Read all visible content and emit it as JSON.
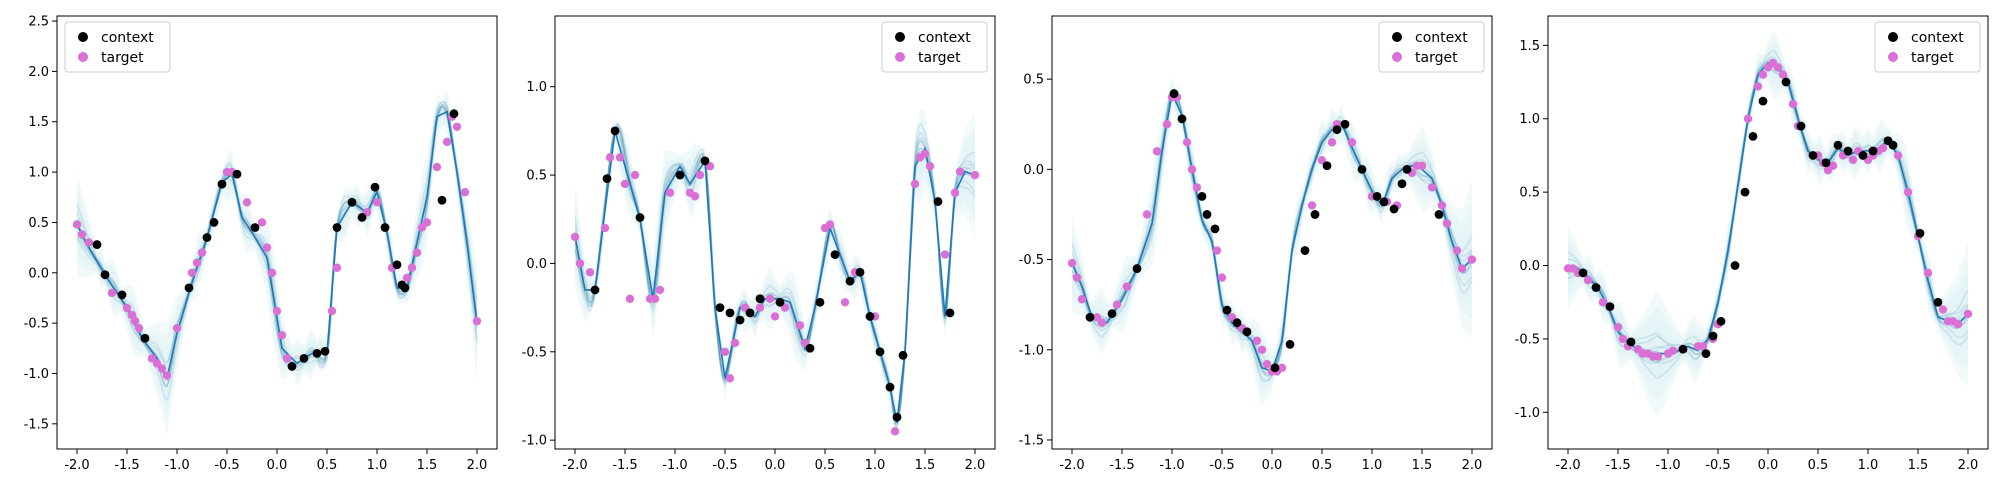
{
  "chart_data": [
    {
      "type": "scatter",
      "xlim": [
        -2.2,
        2.2
      ],
      "ylim": [
        -1.75,
        2.55
      ],
      "xticks": [
        "-2.0",
        "-1.5",
        "-1.0",
        "-0.5",
        "0.0",
        "0.5",
        "1.0",
        "1.5",
        "2.0"
      ],
      "yticks": [
        "-1.5",
        "-1.0",
        "-0.5",
        "0.0",
        "0.5",
        "1.0",
        "1.5",
        "2.0",
        "2.5"
      ],
      "legend_position": "top-left",
      "series": [
        {
          "name": "context",
          "color": "#000000"
        },
        {
          "name": "target",
          "color": "#da70d6"
        }
      ],
      "band_color": "#e0f2f5",
      "curve_color": "#1f77b4",
      "truth": {
        "x": [
          -2.0,
          -1.9,
          -1.7,
          -1.5,
          -1.35,
          -1.2,
          -1.1,
          -1.0,
          -0.85,
          -0.7,
          -0.55,
          -0.45,
          -0.35,
          -0.25,
          -0.1,
          0.05,
          0.2,
          0.35,
          0.5,
          0.6,
          0.75,
          0.9,
          1.0,
          1.1,
          1.2,
          1.3,
          1.4,
          1.5,
          1.6,
          1.7,
          1.8,
          1.9,
          2.0
        ],
        "y": [
          0.48,
          0.28,
          -0.05,
          -0.35,
          -0.65,
          -0.85,
          -1.05,
          -0.6,
          -0.1,
          0.35,
          0.9,
          0.98,
          0.55,
          0.4,
          0.15,
          -0.75,
          -0.9,
          -0.8,
          -0.8,
          0.45,
          0.7,
          0.6,
          0.8,
          0.4,
          -0.15,
          -0.15,
          0.3,
          0.75,
          1.55,
          1.6,
          1.0,
          0.3,
          -0.5
        ]
      },
      "context": {
        "x": [
          -1.8,
          -1.72,
          -1.55,
          -1.32,
          -0.88,
          -0.7,
          -0.63,
          -0.55,
          -0.4,
          -0.22,
          0.15,
          0.27,
          0.4,
          0.48,
          0.6,
          0.75,
          0.85,
          0.98,
          1.08,
          1.2,
          1.25,
          1.28,
          1.65,
          1.77
        ],
        "y": [
          0.28,
          -0.02,
          -0.22,
          -0.65,
          -0.15,
          0.35,
          0.5,
          0.88,
          0.98,
          0.45,
          -0.93,
          -0.85,
          -0.8,
          -0.78,
          0.45,
          0.7,
          0.55,
          0.85,
          0.45,
          0.08,
          -0.12,
          -0.15,
          0.72,
          1.58
        ]
      },
      "target": {
        "x": [
          -2.0,
          -1.95,
          -1.88,
          -1.65,
          -1.5,
          -1.45,
          -1.42,
          -1.38,
          -1.25,
          -1.2,
          -1.15,
          -1.1,
          -1.0,
          -0.85,
          -0.8,
          -0.75,
          -0.5,
          -0.45,
          -0.3,
          -0.15,
          -0.1,
          -0.05,
          0.0,
          0.05,
          0.1,
          0.55,
          0.6,
          0.9,
          1.0,
          1.15,
          1.3,
          1.35,
          1.4,
          1.45,
          1.5,
          1.6,
          1.7,
          1.75,
          1.8,
          1.88,
          2.0
        ],
        "y": [
          0.48,
          0.38,
          0.3,
          -0.2,
          -0.35,
          -0.42,
          -0.48,
          -0.55,
          -0.85,
          -0.9,
          -0.95,
          -1.02,
          -0.55,
          0.0,
          0.1,
          0.2,
          1.0,
          1.0,
          0.7,
          0.5,
          0.25,
          0.0,
          -0.38,
          -0.62,
          -0.85,
          -0.38,
          0.05,
          0.6,
          0.7,
          0.05,
          -0.05,
          0.05,
          0.2,
          0.45,
          0.5,
          1.05,
          1.3,
          1.55,
          1.45,
          0.8,
          -0.48
        ]
      }
    },
    {
      "type": "scatter",
      "xlim": [
        -2.2,
        2.2
      ],
      "ylim": [
        -1.05,
        1.4
      ],
      "xticks": [
        "-2.0",
        "-1.5",
        "-1.0",
        "-0.5",
        "0.0",
        "0.5",
        "1.0",
        "1.5",
        "2.0"
      ],
      "yticks": [
        "-1.0",
        "-0.5",
        "0.0",
        "0.5",
        "1.0"
      ],
      "legend_position": "top-right",
      "series": [
        {
          "name": "context",
          "color": "#000000"
        },
        {
          "name": "target",
          "color": "#da70d6"
        }
      ],
      "band_color": "#e0f2f5",
      "curve_color": "#1f77b4",
      "truth": {
        "x": [
          -2.0,
          -1.9,
          -1.8,
          -1.6,
          -1.45,
          -1.35,
          -1.22,
          -1.1,
          -0.95,
          -0.85,
          -0.7,
          -0.6,
          -0.5,
          -0.35,
          -0.2,
          -0.1,
          0.05,
          0.15,
          0.3,
          0.4,
          0.55,
          0.65,
          0.75,
          0.85,
          0.95,
          1.05,
          1.15,
          1.22,
          1.3,
          1.4,
          1.5,
          1.6,
          1.7,
          1.8,
          1.9,
          2.0
        ],
        "y": [
          0.15,
          -0.15,
          -0.15,
          0.75,
          0.45,
          0.25,
          -0.2,
          0.4,
          0.55,
          0.45,
          0.58,
          -0.25,
          -0.65,
          -0.25,
          -0.3,
          -0.2,
          -0.2,
          -0.22,
          -0.48,
          -0.25,
          0.2,
          0.05,
          -0.1,
          -0.05,
          -0.3,
          -0.5,
          -0.7,
          -0.9,
          -0.5,
          0.55,
          0.65,
          0.35,
          -0.3,
          0.4,
          0.52,
          0.5
        ]
      },
      "context": {
        "x": [
          -1.8,
          -1.68,
          -1.6,
          -1.35,
          -0.95,
          -0.7,
          -0.55,
          -0.45,
          -0.35,
          -0.25,
          -0.15,
          0.05,
          0.35,
          0.45,
          0.6,
          0.75,
          0.85,
          0.95,
          1.05,
          1.15,
          1.22,
          1.28,
          1.63,
          1.75
        ],
        "y": [
          -0.15,
          0.48,
          0.75,
          0.26,
          0.5,
          0.58,
          -0.25,
          -0.28,
          -0.32,
          -0.28,
          -0.2,
          -0.22,
          -0.48,
          -0.22,
          0.05,
          -0.1,
          -0.05,
          -0.3,
          -0.5,
          -0.7,
          -0.87,
          -0.52,
          0.35,
          -0.28
        ]
      },
      "target": {
        "x": [
          -2.0,
          -1.95,
          -1.85,
          -1.7,
          -1.65,
          -1.55,
          -1.5,
          -1.45,
          -1.4,
          -1.25,
          -1.2,
          -1.15,
          -1.05,
          -0.85,
          -0.8,
          -0.75,
          -0.65,
          -0.5,
          -0.45,
          -0.4,
          -0.3,
          -0.15,
          -0.05,
          0.0,
          0.1,
          0.25,
          0.3,
          0.5,
          0.55,
          0.7,
          0.8,
          1.0,
          1.2,
          1.4,
          1.45,
          1.5,
          1.55,
          1.7,
          1.8,
          1.85,
          2.0
        ],
        "y": [
          0.15,
          0.0,
          -0.05,
          0.2,
          0.6,
          0.6,
          0.45,
          -0.2,
          0.5,
          -0.2,
          -0.2,
          -0.15,
          0.4,
          0.4,
          0.38,
          0.5,
          0.55,
          -0.5,
          -0.65,
          -0.45,
          -0.25,
          -0.25,
          -0.2,
          -0.3,
          -0.25,
          -0.35,
          -0.45,
          0.2,
          0.22,
          -0.22,
          -0.05,
          -0.3,
          -0.95,
          0.45,
          0.6,
          0.62,
          0.55,
          0.05,
          0.4,
          0.52,
          0.5
        ]
      }
    },
    {
      "type": "scatter",
      "xlim": [
        -2.2,
        2.2
      ],
      "ylim": [
        -1.55,
        0.85
      ],
      "xticks": [
        "-2.0",
        "-1.5",
        "-1.0",
        "-0.5",
        "0.0",
        "0.5",
        "1.0",
        "1.5",
        "2.0"
      ],
      "yticks": [
        "-1.5",
        "-1.0",
        "-0.5",
        "0.0",
        "0.5"
      ],
      "legend_position": "top-right",
      "series": [
        {
          "name": "context",
          "color": "#000000"
        },
        {
          "name": "target",
          "color": "#da70d6"
        }
      ],
      "band_color": "#e0f2f5",
      "curve_color": "#1f77b4",
      "truth": {
        "x": [
          -2.0,
          -1.9,
          -1.8,
          -1.65,
          -1.5,
          -1.35,
          -1.2,
          -1.1,
          -1.0,
          -0.9,
          -0.8,
          -0.7,
          -0.6,
          -0.5,
          -0.4,
          -0.3,
          -0.2,
          -0.1,
          0.0,
          0.1,
          0.2,
          0.3,
          0.4,
          0.5,
          0.6,
          0.7,
          0.8,
          0.9,
          1.0,
          1.1,
          1.2,
          1.3,
          1.4,
          1.5,
          1.6,
          1.7,
          1.8,
          1.9,
          2.0
        ],
        "y": [
          -0.52,
          -0.65,
          -0.82,
          -0.85,
          -0.72,
          -0.55,
          -0.3,
          0.1,
          0.42,
          0.3,
          0.0,
          -0.28,
          -0.4,
          -0.75,
          -0.85,
          -0.9,
          -0.95,
          -1.1,
          -1.12,
          -0.95,
          -0.45,
          -0.2,
          0.0,
          0.15,
          0.22,
          0.25,
          0.12,
          0.0,
          -0.12,
          -0.2,
          -0.05,
          0.0,
          0.02,
          0.0,
          -0.05,
          -0.2,
          -0.4,
          -0.55,
          -0.5
        ]
      },
      "context": {
        "x": [
          -1.82,
          -1.6,
          -1.35,
          -0.98,
          -0.9,
          -0.7,
          -0.65,
          -0.57,
          -0.45,
          -0.35,
          -0.25,
          0.03,
          0.18,
          0.33,
          0.43,
          0.55,
          0.65,
          0.73,
          0.9,
          1.05,
          1.12,
          1.22,
          1.3,
          1.35,
          1.67
        ],
        "y": [
          -0.82,
          -0.8,
          -0.55,
          0.42,
          0.28,
          -0.15,
          -0.25,
          -0.33,
          -0.78,
          -0.85,
          -0.9,
          -1.1,
          -0.97,
          -0.45,
          -0.25,
          0.02,
          0.22,
          0.25,
          0.0,
          -0.15,
          -0.18,
          -0.22,
          -0.08,
          0.0,
          -0.25
        ]
      },
      "target": {
        "x": [
          -2.0,
          -1.95,
          -1.9,
          -1.75,
          -1.7,
          -1.55,
          -1.45,
          -1.25,
          -1.15,
          -1.05,
          -1.0,
          -0.95,
          -0.85,
          -0.8,
          -0.75,
          -0.55,
          -0.5,
          -0.4,
          -0.3,
          -0.15,
          -0.1,
          -0.05,
          0.0,
          0.05,
          0.1,
          0.4,
          0.5,
          0.6,
          0.65,
          0.8,
          1.0,
          1.15,
          1.25,
          1.4,
          1.45,
          1.5,
          1.6,
          1.7,
          1.75,
          1.85,
          1.9,
          2.0
        ],
        "y": [
          -0.52,
          -0.6,
          -0.72,
          -0.82,
          -0.85,
          -0.75,
          -0.65,
          -0.25,
          0.1,
          0.25,
          0.4,
          0.4,
          0.15,
          0.0,
          -0.1,
          -0.45,
          -0.6,
          -0.82,
          -0.88,
          -0.95,
          -1.0,
          -1.08,
          -1.12,
          -1.12,
          -1.1,
          -0.2,
          0.05,
          0.15,
          0.25,
          0.15,
          -0.15,
          -0.18,
          -0.2,
          -0.02,
          0.02,
          0.02,
          -0.1,
          -0.2,
          -0.3,
          -0.45,
          -0.55,
          -0.5
        ]
      }
    },
    {
      "type": "scatter",
      "xlim": [
        -2.2,
        2.2
      ],
      "ylim": [
        -1.25,
        1.7
      ],
      "xticks": [
        "-2.0",
        "-1.5",
        "-1.0",
        "-0.5",
        "0.0",
        "0.5",
        "1.0",
        "1.5",
        "2.0"
      ],
      "yticks": [
        "-1.0",
        "-0.5",
        "0.0",
        "0.5",
        "1.0",
        "1.5"
      ],
      "legend_position": "top-right",
      "series": [
        {
          "name": "context",
          "color": "#000000"
        },
        {
          "name": "target",
          "color": "#da70d6"
        }
      ],
      "band_color": "#e0f2f5",
      "curve_color": "#1f77b4",
      "truth": {
        "x": [
          -2.0,
          -1.9,
          -1.8,
          -1.7,
          -1.6,
          -1.5,
          -1.4,
          -1.3,
          -1.2,
          -1.1,
          -1.0,
          -0.9,
          -0.8,
          -0.7,
          -0.6,
          -0.5,
          -0.4,
          -0.3,
          -0.2,
          -0.1,
          0.0,
          0.1,
          0.2,
          0.3,
          0.4,
          0.5,
          0.6,
          0.7,
          0.8,
          0.9,
          1.0,
          1.1,
          1.2,
          1.3,
          1.4,
          1.5,
          1.6,
          1.7,
          1.8,
          1.9,
          2.0
        ],
        "y": [
          -0.02,
          -0.02,
          -0.08,
          -0.15,
          -0.28,
          -0.45,
          -0.53,
          -0.57,
          -0.6,
          -0.6,
          -0.6,
          -0.58,
          -0.55,
          -0.58,
          -0.5,
          -0.25,
          0.1,
          0.55,
          1.0,
          1.3,
          1.38,
          1.35,
          1.25,
          1.0,
          0.78,
          0.72,
          0.7,
          0.8,
          0.75,
          0.78,
          0.78,
          0.8,
          0.85,
          0.75,
          0.5,
          0.2,
          -0.1,
          -0.35,
          -0.38,
          -0.4,
          -0.33
        ]
      },
      "context": {
        "x": [
          -1.85,
          -1.72,
          -1.58,
          -1.37,
          -0.85,
          -0.62,
          -0.55,
          -0.47,
          -0.33,
          -0.23,
          -0.15,
          -0.05,
          0.18,
          0.33,
          0.45,
          0.58,
          0.7,
          0.8,
          0.95,
          1.05,
          1.2,
          1.25,
          1.52,
          1.7
        ],
        "y": [
          -0.05,
          -0.15,
          -0.28,
          -0.52,
          -0.57,
          -0.6,
          -0.48,
          -0.38,
          0.0,
          0.5,
          0.88,
          1.12,
          1.25,
          0.95,
          0.75,
          0.7,
          0.82,
          0.78,
          0.75,
          0.78,
          0.85,
          0.82,
          0.22,
          -0.25
        ]
      },
      "target": {
        "x": [
          -2.0,
          -1.95,
          -1.9,
          -1.8,
          -1.65,
          -1.5,
          -1.45,
          -1.4,
          -1.3,
          -1.25,
          -1.2,
          -1.15,
          -1.1,
          -1.0,
          -0.95,
          -0.7,
          -0.65,
          -0.55,
          -0.5,
          -0.2,
          -0.1,
          -0.05,
          0.0,
          0.05,
          0.1,
          0.15,
          0.25,
          0.3,
          0.5,
          0.55,
          0.6,
          0.65,
          0.75,
          0.85,
          0.9,
          1.0,
          1.05,
          1.1,
          1.15,
          1.3,
          1.4,
          1.5,
          1.6,
          1.75,
          1.8,
          1.85,
          1.9,
          2.0
        ],
        "y": [
          -0.02,
          -0.02,
          -0.05,
          -0.1,
          -0.25,
          -0.42,
          -0.5,
          -0.55,
          -0.57,
          -0.6,
          -0.6,
          -0.62,
          -0.62,
          -0.6,
          -0.58,
          -0.55,
          -0.55,
          -0.5,
          -0.4,
          1.0,
          1.22,
          1.3,
          1.35,
          1.38,
          1.35,
          1.3,
          1.1,
          0.95,
          0.75,
          0.7,
          0.65,
          0.68,
          0.75,
          0.72,
          0.78,
          0.72,
          0.75,
          0.78,
          0.8,
          0.75,
          0.5,
          0.2,
          -0.05,
          -0.3,
          -0.38,
          -0.38,
          -0.4,
          -0.33
        ]
      }
    }
  ]
}
